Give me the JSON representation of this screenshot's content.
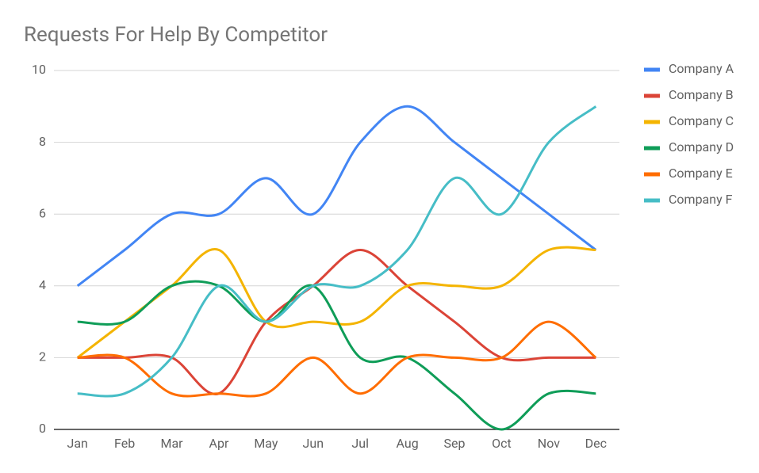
{
  "chart_data": {
    "type": "line",
    "title": "Requests For Help By Competitor",
    "categories": [
      "Jan",
      "Feb",
      "Mar",
      "Apr",
      "May",
      "Jun",
      "Jul",
      "Aug",
      "Sep",
      "Oct",
      "Nov",
      "Dec"
    ],
    "series": [
      {
        "name": "Company A",
        "color": "#4285f4",
        "values": [
          4,
          5,
          6,
          6,
          7,
          6,
          8,
          9,
          8,
          7,
          6,
          5
        ]
      },
      {
        "name": "Company B",
        "color": "#db4437",
        "values": [
          2,
          2,
          2,
          1,
          3,
          4,
          5,
          4,
          3,
          2,
          2,
          2
        ]
      },
      {
        "name": "Company C",
        "color": "#f4b400",
        "values": [
          2,
          3,
          4,
          5,
          3,
          3,
          3,
          4,
          4,
          4,
          5,
          5
        ]
      },
      {
        "name": "Company D",
        "color": "#0f9d58",
        "values": [
          3,
          3,
          4,
          4,
          3,
          4,
          2,
          2,
          1,
          0,
          1,
          1
        ]
      },
      {
        "name": "Company E",
        "color": "#ff6d00",
        "values": [
          2,
          2,
          1,
          1,
          1,
          2,
          1,
          2,
          2,
          2,
          3,
          2
        ]
      },
      {
        "name": "Company F",
        "color": "#46bdc6",
        "values": [
          1,
          1,
          2,
          4,
          3,
          4,
          4,
          5,
          7,
          6,
          8,
          9
        ]
      }
    ],
    "ylim": [
      0,
      10
    ],
    "yticks": [
      0,
      2,
      4,
      6,
      8,
      10
    ],
    "grid": true,
    "legend": "right"
  }
}
